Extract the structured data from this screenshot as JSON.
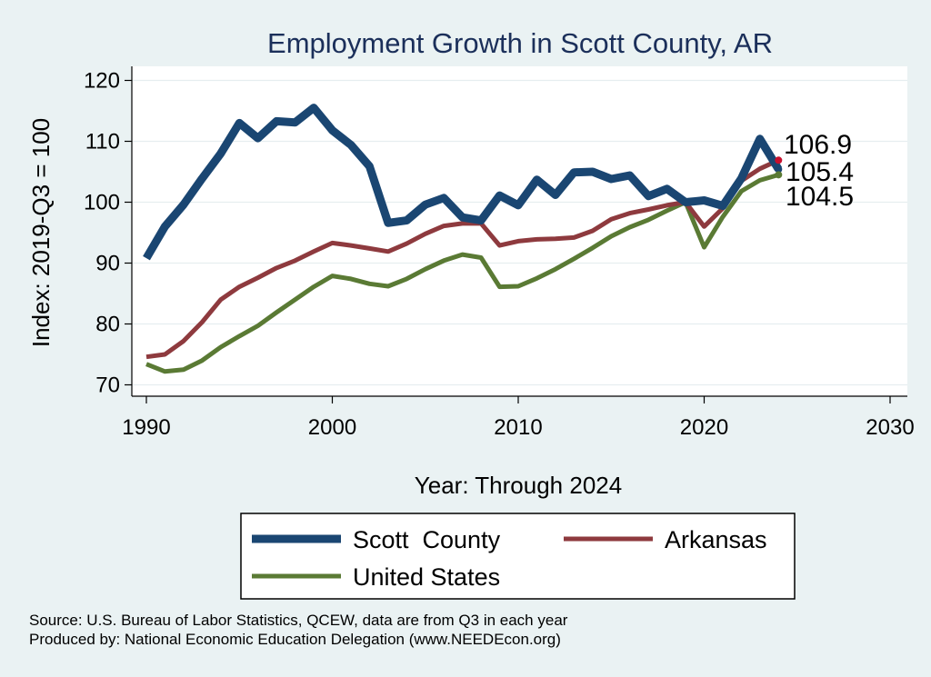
{
  "chart_data": {
    "type": "line",
    "title": "Employment Growth in Scott County, AR",
    "xlabel": "Year: Through 2024",
    "ylabel": "Index: 2019-Q3 = 100",
    "xlim": [
      1990,
      2030
    ],
    "ylim": [
      68,
      122
    ],
    "xticks": [
      1990,
      2000,
      2010,
      2020,
      2030
    ],
    "yticks": [
      70,
      80,
      90,
      100,
      110,
      120
    ],
    "grid": true,
    "legend_position": "bottom",
    "x": [
      1990,
      1991,
      1992,
      1993,
      1994,
      1995,
      1996,
      1997,
      1998,
      1999,
      2000,
      2001,
      2002,
      2003,
      2004,
      2005,
      2006,
      2007,
      2008,
      2009,
      2010,
      2011,
      2012,
      2013,
      2014,
      2015,
      2016,
      2017,
      2018,
      2019,
      2020,
      2021,
      2022,
      2023,
      2024
    ],
    "series": [
      {
        "name": "Scott  County",
        "color": "#1a4672",
        "width": 9,
        "values": [
          90.8,
          96.0,
          99.6,
          103.9,
          108.0,
          113.0,
          110.5,
          113.3,
          113.1,
          115.5,
          111.8,
          109.4,
          105.9,
          96.6,
          97.0,
          99.6,
          100.7,
          97.5,
          97.0,
          101.1,
          99.5,
          103.7,
          101.2,
          104.9,
          105.0,
          103.8,
          104.4,
          101.0,
          102.2,
          100.0,
          100.3,
          99.4,
          103.9,
          110.4,
          105.4
        ]
      },
      {
        "name": "Arkansas",
        "color": "#8e3a3e",
        "width": 5,
        "values": [
          74.6,
          75.0,
          77.2,
          80.3,
          84.0,
          86.1,
          87.6,
          89.2,
          90.4,
          91.9,
          93.3,
          92.9,
          92.4,
          91.9,
          93.2,
          94.8,
          96.1,
          96.5,
          96.5,
          92.9,
          93.6,
          93.9,
          94.0,
          94.2,
          95.3,
          97.2,
          98.2,
          98.8,
          99.5,
          100.0,
          96.0,
          99.0,
          103.5,
          105.5,
          106.9
        ]
      },
      {
        "name": "United States",
        "color": "#5a7a34",
        "width": 5,
        "values": [
          73.4,
          72.2,
          72.5,
          74.0,
          76.2,
          78.0,
          79.7,
          81.9,
          84.0,
          86.1,
          87.9,
          87.4,
          86.6,
          86.2,
          87.4,
          89.0,
          90.4,
          91.4,
          90.9,
          86.1,
          86.2,
          87.5,
          89.0,
          90.7,
          92.5,
          94.4,
          95.9,
          97.1,
          98.6,
          100.0,
          92.6,
          97.6,
          101.8,
          103.6,
          104.5
        ]
      }
    ],
    "end_labels": [
      "106.9",
      "105.4",
      "104.5"
    ],
    "end_marker_colors": [
      "#c8102e",
      "#1a4672",
      "#5a7a34"
    ]
  },
  "notes": {
    "source": "Source: U.S. Bureau of Labor Statistics, QCEW, data are from Q3 in each year",
    "producer": "Produced by: National Economic Education Delegation (www.NEEDEcon.org)"
  }
}
